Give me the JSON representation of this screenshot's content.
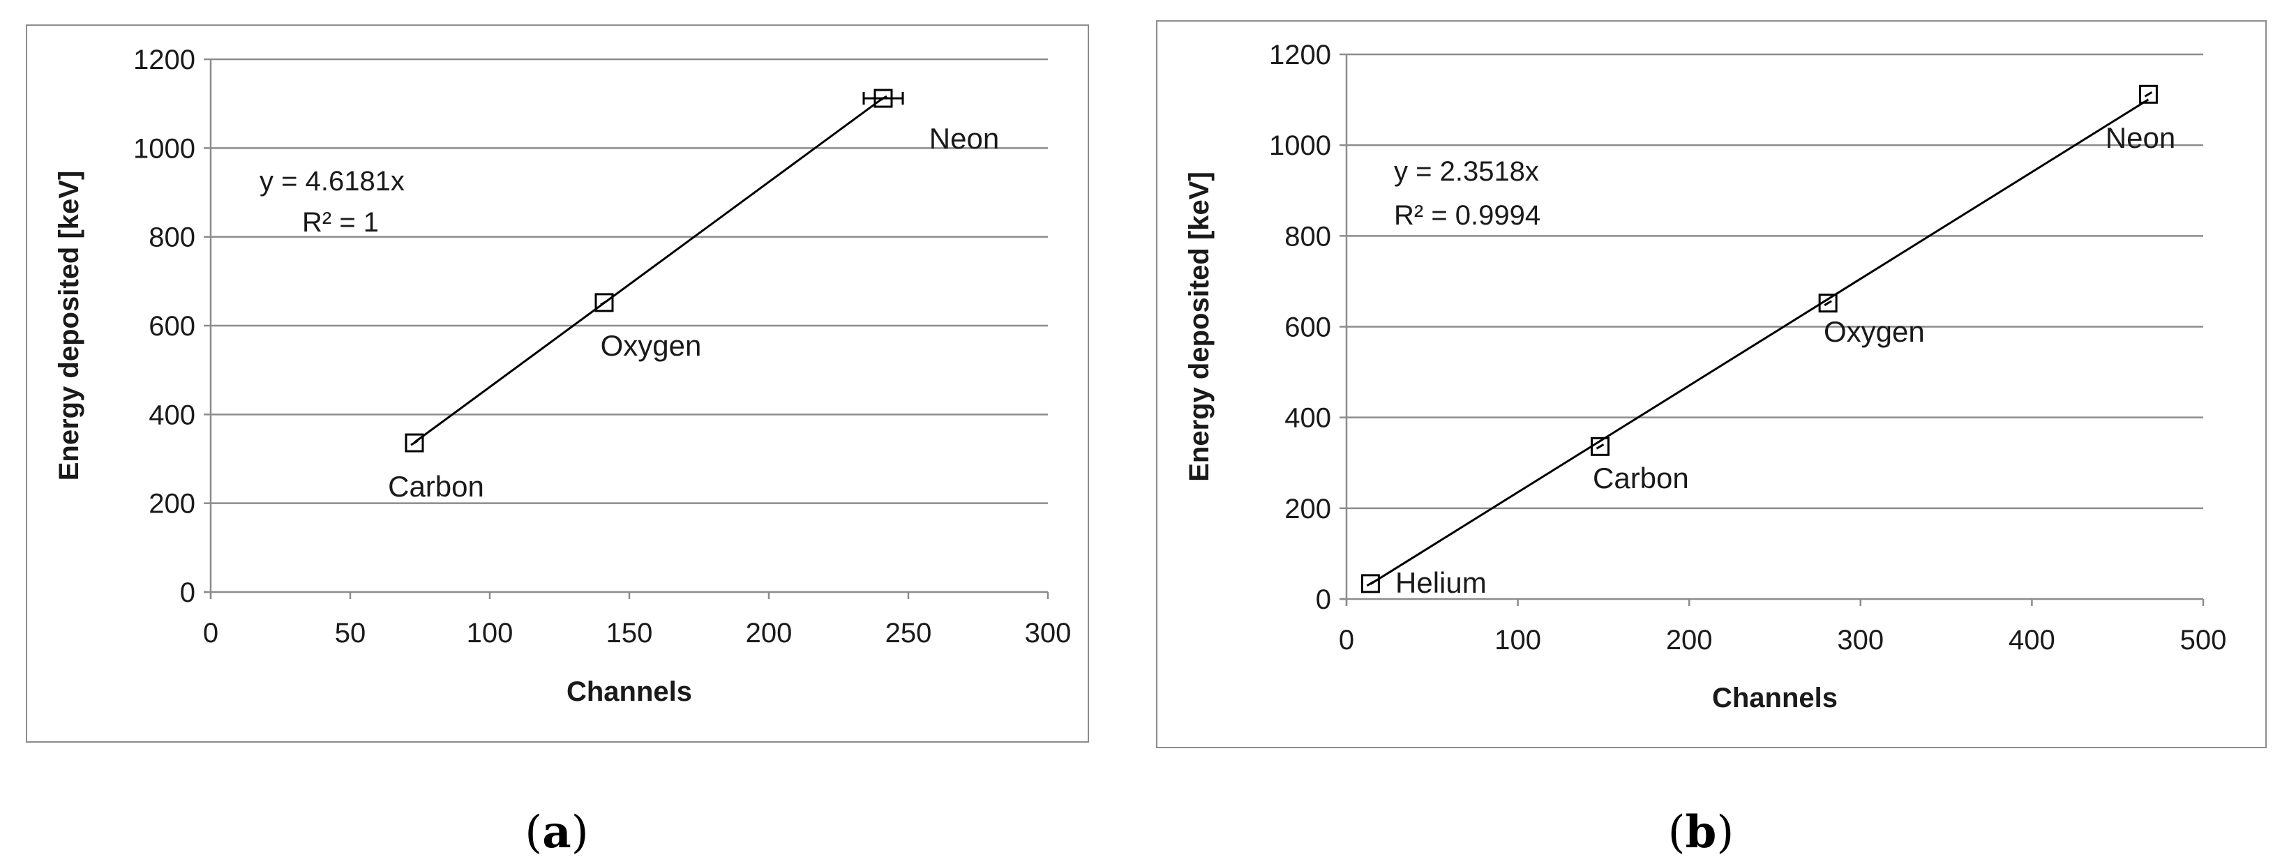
{
  "chart_data": [
    {
      "type": "scatter",
      "panel_label": "a",
      "xlabel": "Channels",
      "ylabel": "Energy deposited [keV]",
      "xlim": [
        0,
        300
      ],
      "ylim": [
        0,
        1200
      ],
      "xticks": [
        0,
        50,
        100,
        150,
        200,
        250,
        300
      ],
      "yticks": [
        0,
        200,
        400,
        600,
        800,
        1000,
        1200
      ],
      "grid": "horizontal",
      "points": [
        {
          "label": "Carbon",
          "x": 73,
          "y": 336,
          "xerr": 0
        },
        {
          "label": "Oxygen",
          "x": 141,
          "y": 652,
          "xerr": 0
        },
        {
          "label": "Neon",
          "x": 241,
          "y": 1112,
          "xerr": 7
        }
      ],
      "trendline": {
        "slope": 4.6181,
        "equation": "y = 4.6181x",
        "r2": "R² = 1"
      }
    },
    {
      "type": "scatter",
      "panel_label": "b",
      "xlabel": "Channels",
      "ylabel": "Energy deposited [keV]",
      "xlim": [
        0,
        500
      ],
      "ylim": [
        0,
        1200
      ],
      "xticks": [
        0,
        100,
        200,
        300,
        400,
        500
      ],
      "yticks": [
        0,
        200,
        400,
        600,
        800,
        1000,
        1200
      ],
      "grid": "horizontal",
      "points": [
        {
          "label": "Helium",
          "x": 14,
          "y": 34,
          "xerr": 0
        },
        {
          "label": "Carbon",
          "x": 148,
          "y": 336,
          "xerr": 0
        },
        {
          "label": "Oxygen",
          "x": 281,
          "y": 652,
          "xerr": 0
        },
        {
          "label": "Neon",
          "x": 468,
          "y": 1112,
          "xerr": 0
        }
      ],
      "trendline": {
        "slope": 2.3518,
        "equation": "y = 2.3518x",
        "r2": "R² = 0.9994"
      }
    }
  ]
}
